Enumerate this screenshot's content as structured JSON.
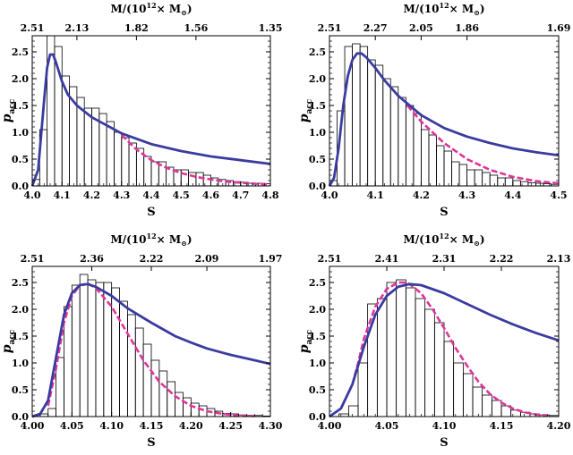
{
  "colors": {
    "blue": "#3b3ba0",
    "magenta": "#e0349a",
    "bars": "#000000"
  },
  "chart_data": [
    {
      "type": "bar",
      "xlabel": "S",
      "ylabel_main": "p",
      "ylabel_sub": "acc",
      "top_axis_label": "M/(10",
      "top_axis_label_exp": "12",
      "top_axis_label_tail": "× M",
      "top_axis_label_sym": "⊙",
      "top_axis_label_end": ")",
      "xlim": [
        4.0,
        4.8
      ],
      "ylim": [
        0,
        2.8
      ],
      "xticks": [
        4.0,
        4.1,
        4.2,
        4.3,
        4.4,
        4.5,
        4.6,
        4.7,
        4.8
      ],
      "xtick_labels": [
        "4.0",
        "4.1",
        "4.2",
        "4.3",
        "4.4",
        "4.5",
        "4.6",
        "4.7",
        "4.8"
      ],
      "yticks": [
        0,
        0.5,
        1.0,
        1.5,
        2.0,
        2.5
      ],
      "ytick_labels": [
        "0.0",
        "0.5",
        "1.0",
        "1.5",
        "2.0",
        "2.5"
      ],
      "top_ticks": [
        4.0,
        4.15,
        4.35,
        4.55,
        4.8
      ],
      "top_tick_labels": [
        "2.51",
        "2.13",
        "1.82",
        "1.56",
        "1.35"
      ],
      "bar_edges": [
        4.0,
        4.025,
        4.05,
        4.075,
        4.1,
        4.125,
        4.15,
        4.175,
        4.2,
        4.225,
        4.25,
        4.275,
        4.3,
        4.325,
        4.35,
        4.375,
        4.4,
        4.425,
        4.45,
        4.475,
        4.5,
        4.525,
        4.55,
        4.575,
        4.6,
        4.625,
        4.65,
        4.675,
        4.7,
        4.725,
        4.75,
        4.775,
        4.8
      ],
      "bar_values": [
        0.12,
        1.05,
        2.85,
        2.6,
        2.05,
        1.85,
        1.65,
        1.45,
        1.45,
        1.35,
        1.2,
        1.0,
        0.9,
        0.8,
        0.7,
        0.55,
        0.45,
        0.45,
        0.35,
        0.3,
        0.3,
        0.25,
        0.25,
        0.2,
        0.15,
        0.12,
        0.1,
        0.08,
        0.07,
        0.05,
        0.05,
        0.04
      ],
      "blue_curve": {
        "x": [
          4.0,
          4.02,
          4.04,
          4.05,
          4.06,
          4.07,
          4.08,
          4.1,
          4.12,
          4.15,
          4.2,
          4.25,
          4.3,
          4.4,
          4.5,
          4.6,
          4.7,
          4.8
        ],
        "y": [
          0.0,
          0.3,
          1.6,
          2.2,
          2.45,
          2.45,
          2.3,
          1.95,
          1.7,
          1.5,
          1.28,
          1.13,
          0.98,
          0.78,
          0.65,
          0.55,
          0.48,
          0.41
        ]
      },
      "magenta_curve": {
        "x": [
          4.3,
          4.35,
          4.4,
          4.45,
          4.5,
          4.55,
          4.6,
          4.65,
          4.7,
          4.75,
          4.8
        ],
        "y": [
          0.95,
          0.68,
          0.48,
          0.34,
          0.24,
          0.17,
          0.12,
          0.08,
          0.06,
          0.04,
          0.03
        ]
      }
    },
    {
      "type": "bar",
      "xlabel": "S",
      "ylabel_main": "p",
      "ylabel_sub": "acc",
      "top_axis_label": "M/(10",
      "top_axis_label_exp": "12",
      "top_axis_label_tail": "× M",
      "top_axis_label_sym": "⊙",
      "top_axis_label_end": ")",
      "xlim": [
        4.0,
        4.5
      ],
      "ylim": [
        0,
        2.8
      ],
      "xticks": [
        4.0,
        4.1,
        4.2,
        4.3,
        4.4,
        4.5
      ],
      "xtick_labels": [
        "4.0",
        "4.1",
        "4.2",
        "4.3",
        "4.4",
        "4.5"
      ],
      "yticks": [
        0,
        0.5,
        1.0,
        1.5,
        2.0,
        2.5
      ],
      "ytick_labels": [
        "0.0",
        "0.5",
        "1.0",
        "1.5",
        "2.0",
        "2.5"
      ],
      "top_ticks": [
        4.0,
        4.1,
        4.2,
        4.3,
        4.5
      ],
      "top_tick_labels": [
        "2.51",
        "2.27",
        "2.05",
        "1.86",
        "1.69"
      ],
      "bar_edges": [
        4.0,
        4.0167,
        4.0333,
        4.05,
        4.0667,
        4.0833,
        4.1,
        4.1167,
        4.1333,
        4.15,
        4.1667,
        4.1833,
        4.2,
        4.2167,
        4.2333,
        4.25,
        4.2667,
        4.2833,
        4.3,
        4.3167,
        4.3333,
        4.35,
        4.3667,
        4.3833,
        4.4,
        4.4167,
        4.4333,
        4.45,
        4.4667,
        4.4833,
        4.5
      ],
      "bar_values": [
        0.1,
        1.4,
        2.6,
        2.65,
        2.6,
        2.35,
        2.25,
        2.0,
        1.85,
        1.65,
        1.5,
        1.35,
        1.05,
        0.95,
        0.75,
        0.65,
        0.45,
        0.4,
        0.3,
        0.3,
        0.25,
        0.2,
        0.15,
        0.15,
        0.1,
        0.08,
        0.06,
        0.05,
        0.04,
        0.03
      ],
      "blue_curve": {
        "x": [
          4.0,
          4.01,
          4.02,
          4.03,
          4.04,
          4.05,
          4.06,
          4.07,
          4.08,
          4.1,
          4.12,
          4.15,
          4.2,
          4.25,
          4.3,
          4.35,
          4.4,
          4.45,
          4.5
        ],
        "y": [
          0.0,
          0.15,
          0.7,
          1.5,
          2.05,
          2.35,
          2.47,
          2.47,
          2.4,
          2.2,
          1.97,
          1.68,
          1.32,
          1.08,
          0.92,
          0.8,
          0.7,
          0.63,
          0.57
        ]
      },
      "magenta_curve": {
        "x": [
          4.17,
          4.2,
          4.25,
          4.3,
          4.35,
          4.4,
          4.45,
          4.5
        ],
        "y": [
          1.5,
          1.2,
          0.8,
          0.5,
          0.3,
          0.17,
          0.09,
          0.05
        ]
      }
    },
    {
      "type": "bar",
      "xlabel": "S",
      "ylabel_main": "p",
      "ylabel_sub": "acc",
      "top_axis_label": "M/(10",
      "top_axis_label_exp": "12",
      "top_axis_label_tail": "× M",
      "top_axis_label_sym": "⊙",
      "top_axis_label_end": ")",
      "xlim": [
        4.0,
        4.3
      ],
      "ylim": [
        0,
        2.8
      ],
      "xticks": [
        4.0,
        4.05,
        4.1,
        4.15,
        4.2,
        4.25,
        4.3
      ],
      "xtick_labels": [
        "4.00",
        "4.05",
        "4.10",
        "4.15",
        "4.20",
        "4.25",
        "4.30"
      ],
      "yticks": [
        0,
        0.5,
        1.0,
        1.5,
        2.0,
        2.5
      ],
      "ytick_labels": [
        "0.0",
        "0.5",
        "1.0",
        "1.5",
        "2.0",
        "2.5"
      ],
      "top_ticks": [
        4.0,
        4.075,
        4.15,
        4.22,
        4.3
      ],
      "top_tick_labels": [
        "2.51",
        "2.36",
        "2.22",
        "2.09",
        "1.97"
      ],
      "bar_edges": [
        4.0,
        4.01,
        4.02,
        4.03,
        4.04,
        4.05,
        4.06,
        4.07,
        4.08,
        4.09,
        4.1,
        4.11,
        4.12,
        4.13,
        4.14,
        4.15,
        4.16,
        4.17,
        4.18,
        4.19,
        4.2,
        4.21,
        4.22,
        4.23,
        4.24,
        4.25,
        4.26,
        4.27,
        4.28,
        4.29,
        4.3
      ],
      "bar_values": [
        0.0,
        0.05,
        0.15,
        1.1,
        2.05,
        2.45,
        2.65,
        2.55,
        2.5,
        2.5,
        2.4,
        2.15,
        1.9,
        1.65,
        1.35,
        1.05,
        0.85,
        0.65,
        0.45,
        0.35,
        0.25,
        0.2,
        0.15,
        0.1,
        0.06,
        0.05,
        0.03,
        0.02,
        0.02,
        0.01
      ],
      "blue_curve": {
        "x": [
          4.0,
          4.01,
          4.02,
          4.03,
          4.04,
          4.05,
          4.06,
          4.07,
          4.08,
          4.1,
          4.12,
          4.15,
          4.18,
          4.2,
          4.22,
          4.25,
          4.28,
          4.3
        ],
        "y": [
          0.0,
          0.05,
          0.3,
          1.1,
          1.9,
          2.3,
          2.45,
          2.47,
          2.42,
          2.25,
          2.02,
          1.75,
          1.5,
          1.38,
          1.27,
          1.15,
          1.05,
          0.98
        ]
      },
      "magenta_curve": {
        "x": [
          4.02,
          4.03,
          4.04,
          4.05,
          4.06,
          4.07,
          4.08,
          4.1,
          4.12,
          4.14,
          4.16,
          4.18,
          4.2,
          4.22,
          4.24,
          4.26,
          4.28
        ],
        "y": [
          0.2,
          0.9,
          1.75,
          2.25,
          2.45,
          2.48,
          2.4,
          2.05,
          1.55,
          1.05,
          0.65,
          0.38,
          0.2,
          0.1,
          0.05,
          0.02,
          0.01
        ]
      }
    },
    {
      "type": "bar",
      "xlabel": "S",
      "ylabel_main": "p",
      "ylabel_sub": "acc",
      "top_axis_label": "M/(10",
      "top_axis_label_exp": "12",
      "top_axis_label_tail": "× M",
      "top_axis_label_sym": "⊙",
      "top_axis_label_end": ")",
      "xlim": [
        4.0,
        4.2
      ],
      "ylim": [
        0,
        2.8
      ],
      "xticks": [
        4.0,
        4.05,
        4.1,
        4.15,
        4.2
      ],
      "xtick_labels": [
        "4.00",
        "4.05",
        "4.10",
        "4.15",
        "4.20"
      ],
      "yticks": [
        0,
        0.5,
        1.0,
        1.5,
        2.0,
        2.5
      ],
      "ytick_labels": [
        "0.0",
        "0.5",
        "1.0",
        "1.5",
        "2.0",
        "2.5"
      ],
      "top_ticks": [
        4.0,
        4.05,
        4.1,
        4.15,
        4.2
      ],
      "top_tick_labels": [
        "2.51",
        "2.41",
        "2.31",
        "2.22",
        "2.13"
      ],
      "bar_edges": [
        4.0,
        4.0083,
        4.0167,
        4.025,
        4.0333,
        4.0417,
        4.05,
        4.0583,
        4.0667,
        4.075,
        4.0833,
        4.0917,
        4.1,
        4.1083,
        4.1167,
        4.125,
        4.1333,
        4.1417,
        4.15,
        4.1583,
        4.1667,
        4.175,
        4.1833,
        4.1917,
        4.2
      ],
      "bar_values": [
        0.0,
        0.05,
        0.2,
        1.0,
        2.1,
        2.2,
        2.5,
        2.55,
        2.4,
        2.2,
        2.0,
        1.75,
        1.4,
        1.0,
        0.8,
        0.55,
        0.4,
        0.3,
        0.2,
        0.12,
        0.08,
        0.05,
        0.03,
        0.02
      ],
      "blue_curve": {
        "x": [
          4.0,
          4.01,
          4.02,
          4.03,
          4.04,
          4.05,
          4.06,
          4.07,
          4.08,
          4.1,
          4.12,
          4.14,
          4.16,
          4.18,
          4.2
        ],
        "y": [
          0.0,
          0.15,
          0.6,
          1.3,
          1.9,
          2.25,
          2.42,
          2.47,
          2.45,
          2.3,
          2.1,
          1.9,
          1.72,
          1.56,
          1.42
        ]
      },
      "magenta_curve": {
        "x": [
          4.02,
          4.025,
          4.03,
          4.04,
          4.05,
          4.06,
          4.065,
          4.07,
          4.08,
          4.09,
          4.1,
          4.11,
          4.12,
          4.13,
          4.14,
          4.15,
          4.16,
          4.17,
          4.18,
          4.19
        ],
        "y": [
          0.6,
          1.0,
          1.45,
          2.05,
          2.38,
          2.5,
          2.5,
          2.47,
          2.3,
          2.0,
          1.65,
          1.28,
          0.95,
          0.65,
          0.42,
          0.26,
          0.15,
          0.08,
          0.04,
          0.02
        ]
      }
    }
  ]
}
